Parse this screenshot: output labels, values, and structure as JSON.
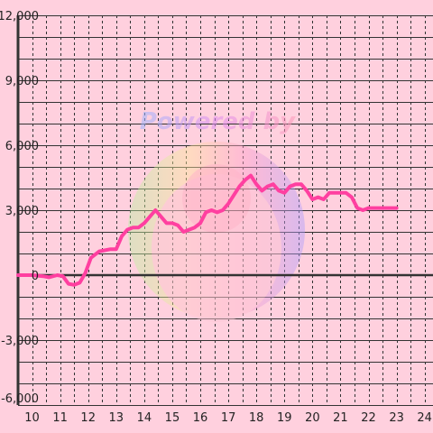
{
  "watermark": {
    "text": "Powered by"
  },
  "colors": {
    "background": "#ffd0de",
    "grid": "#333333",
    "axis": "#333333",
    "line": "#ff3fa0"
  },
  "chart_data": {
    "type": "line",
    "title": "",
    "xlabel": "",
    "ylabel": "",
    "xlim": [
      9.5,
      24.3
    ],
    "ylim": [
      -6000,
      12000
    ],
    "x_ticks": [
      10,
      11,
      12,
      13,
      14,
      15,
      16,
      17,
      18,
      19,
      20,
      21,
      22,
      23,
      24
    ],
    "x_tick_labels": [
      "10",
      "11",
      "12",
      "13",
      "14",
      "15",
      "16",
      "17",
      "18",
      "19",
      "20",
      "21",
      "22",
      "23",
      "24"
    ],
    "y_ticks": [
      -6000,
      -3000,
      0,
      3000,
      6000,
      9000,
      12000
    ],
    "y_tick_labels": [
      "-6,000",
      "-3,000",
      "0",
      "3,000",
      "6,000",
      "9,000",
      "12,000"
    ],
    "y_minor_step": 1000,
    "x_minor_step": 0.5,
    "grid": true,
    "legend": "none",
    "series": [
      {
        "x": [
          9.5,
          10.0,
          10.4,
          10.6,
          10.9,
          11.1,
          11.3,
          11.5,
          11.7,
          11.9,
          12.1,
          12.4,
          12.8,
          13.0,
          13.2,
          13.4,
          13.6,
          13.8,
          14.0,
          14.2,
          14.4,
          14.6,
          14.8,
          15.0,
          15.2,
          15.4,
          15.6,
          15.8,
          16.0,
          16.2,
          16.4,
          16.6,
          16.8,
          17.0,
          17.2,
          17.4,
          17.6,
          17.8,
          18.0,
          18.2,
          18.4,
          18.6,
          18.8,
          19.0,
          19.2,
          19.4,
          19.6,
          19.8,
          20.0,
          20.2,
          20.4,
          20.6,
          20.8,
          21.0,
          21.2,
          21.4,
          21.6,
          21.8,
          22.0,
          22.2,
          22.4,
          22.6,
          22.8,
          23.0
        ],
        "y": [
          0,
          0,
          -50,
          -100,
          0,
          -50,
          -400,
          -450,
          -350,
          100,
          800,
          1100,
          1200,
          1200,
          1800,
          2100,
          2200,
          2200,
          2400,
          2700,
          3000,
          2700,
          2400,
          2400,
          2300,
          2000,
          2100,
          2200,
          2400,
          2900,
          3000,
          2900,
          3000,
          3300,
          3700,
          4100,
          4400,
          4600,
          4200,
          3900,
          4100,
          4200,
          3900,
          3800,
          4100,
          4200,
          4200,
          3900,
          3500,
          3600,
          3500,
          3800,
          3800,
          3800,
          3800,
          3600,
          3100,
          3000,
          3100,
          3100,
          3100,
          3100,
          3100,
          3100
        ]
      }
    ]
  }
}
